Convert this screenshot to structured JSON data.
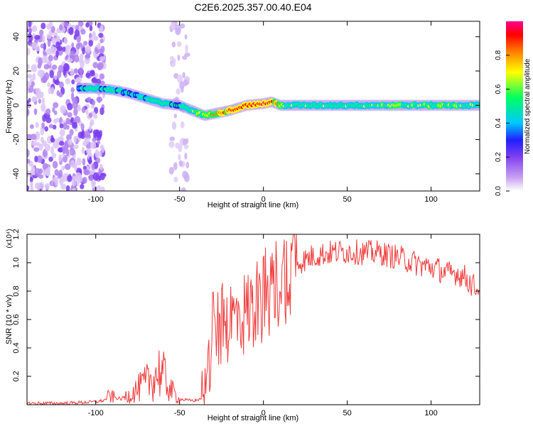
{
  "figure_title": "C2E6.2025.357.00.40.E04",
  "colors": {
    "snr_line": "#f03c3c",
    "axis": "#000000",
    "background": "#ffffff"
  },
  "chart_data": [
    {
      "type": "heatmap",
      "title": "C2E6.2025.357.00.40.E04",
      "xlabel": "Height of straight line (km)",
      "ylabel": "Frequency (Hz)",
      "xlim": [
        -141,
        129
      ],
      "ylim": [
        -50,
        49
      ],
      "x_ticks": [
        -100,
        -50,
        0,
        50,
        100
      ],
      "y_ticks": [
        -40,
        -20,
        0,
        20,
        40
      ],
      "colorbar": {
        "label": "Normalized spectral amplitude",
        "range": [
          0,
          1
        ],
        "ticks": [
          0.0,
          0.2,
          0.4,
          0.6,
          0.8
        ],
        "tick_labels": [
          "0.0",
          "0.2",
          "0.4",
          "0.6",
          "0.8"
        ],
        "colormap": [
          "#ffffff",
          "#c8a0f0",
          "#8040f0",
          "#2020ff",
          "#00c8ff",
          "#00ff60",
          "#ffff00",
          "#ff8000",
          "#ff0000",
          "#ff0090"
        ]
      },
      "ridge": {
        "x": [
          -110,
          -100,
          -90,
          -80,
          -70,
          -60,
          -50,
          -40,
          -35,
          -30,
          -20,
          -10,
          0,
          5,
          10,
          20,
          50,
          80,
          100,
          129
        ],
        "y": [
          10,
          10,
          9,
          7,
          4,
          1,
          0,
          -4,
          -6,
          -5,
          -3,
          0,
          1,
          2,
          0,
          0,
          0,
          0,
          0,
          0
        ],
        "amplitude": [
          0.4,
          0.45,
          0.5,
          0.4,
          0.45,
          0.5,
          0.45,
          0.55,
          0.6,
          0.7,
          0.85,
          0.9,
          0.95,
          0.9,
          0.6,
          0.5,
          0.5,
          0.55,
          0.55,
          0.5
        ]
      },
      "noise_regions": [
        {
          "x_range": [
            -141,
            -95
          ],
          "y_range": [
            -50,
            49
          ],
          "amplitude": 0.15
        },
        {
          "x_range": [
            -55,
            -45
          ],
          "y_range": [
            -50,
            49
          ],
          "amplitude": 0.05
        }
      ]
    },
    {
      "type": "line",
      "xlabel": "Height of straight line (km)",
      "ylabel": "SNR (10 * v/v)",
      "y_multiplier": "(x10⁴)",
      "xlim": [
        -141,
        129
      ],
      "ylim": [
        0,
        1.2
      ],
      "x_ticks": [
        -100,
        -50,
        0,
        50,
        100
      ],
      "y_ticks": [
        0.2,
        0.4,
        0.6,
        0.8,
        1.0,
        1.2
      ],
      "series": [
        {
          "name": "SNR",
          "x": [
            -141,
            -120,
            -100,
            -95,
            -92,
            -85,
            -80,
            -75,
            -70,
            -65,
            -62,
            -58,
            -55,
            -50,
            -45,
            -40,
            -37,
            -35,
            -32,
            -30,
            -25,
            -20,
            -15,
            -10,
            -5,
            0,
            5,
            10,
            15,
            20,
            25,
            30,
            35,
            40,
            50,
            60,
            70,
            75,
            80,
            90,
            95,
            100,
            105,
            110,
            115,
            120,
            125,
            129
          ],
          "y": [
            0.01,
            0.01,
            0.02,
            0.03,
            0.06,
            0.04,
            0.07,
            0.11,
            0.15,
            0.2,
            0.24,
            0.17,
            0.1,
            0.04,
            0.03,
            0.03,
            0.05,
            0.13,
            0.3,
            0.5,
            0.55,
            0.6,
            0.62,
            0.65,
            0.7,
            0.75,
            0.82,
            0.88,
            0.95,
            1.0,
            1.02,
            1.05,
            1.06,
            1.07,
            1.08,
            1.07,
            1.07,
            1.05,
            1.04,
            1.0,
            0.98,
            0.97,
            0.95,
            0.92,
            0.93,
            0.9,
            0.84,
            0.81
          ]
        }
      ]
    }
  ]
}
